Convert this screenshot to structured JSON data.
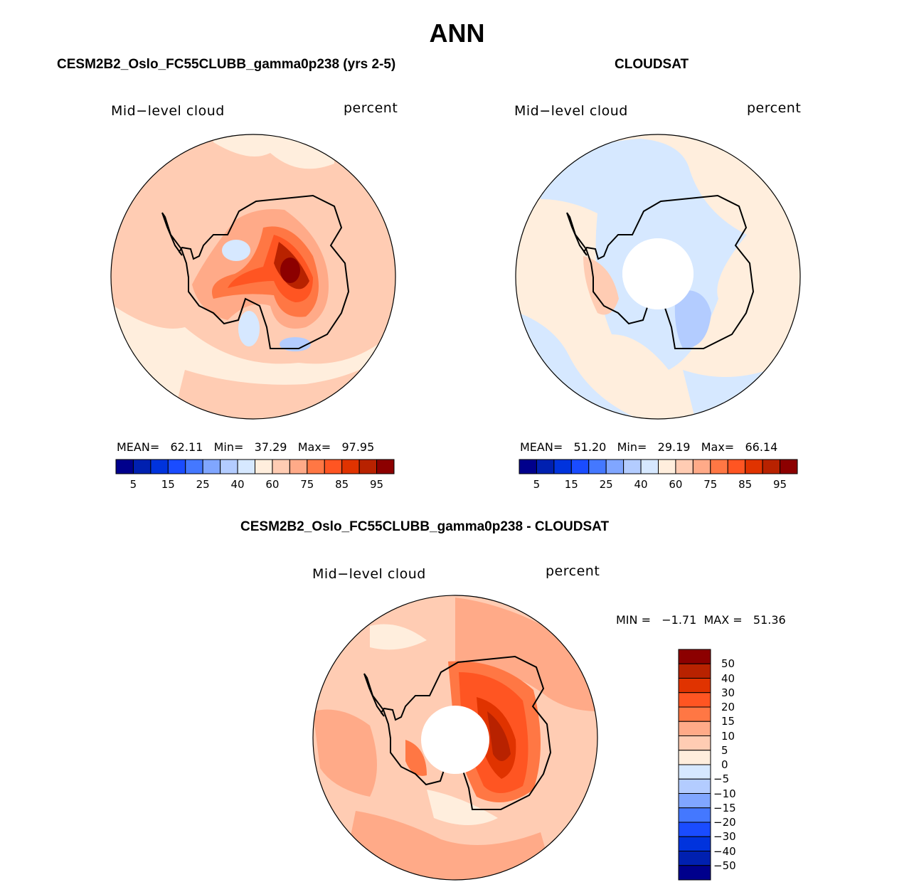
{
  "title": "ANN",
  "panels": {
    "model": {
      "title": "CESM2B2_Oslo_FC55CLUBB_gamma0p238 (yrs 2-5)",
      "variable": "Mid−level cloud",
      "units": "percent",
      "mean_label": "MEAN=",
      "mean": "62.11",
      "min_label": "Min=",
      "min": "37.29",
      "max_label": "Max=",
      "max": "97.95"
    },
    "obs": {
      "title": "CLOUDSAT",
      "variable": "Mid−level cloud",
      "units": "percent",
      "mean_label": "MEAN=",
      "mean": "51.20",
      "min_label": "Min=",
      "min": "29.19",
      "max_label": "Max=",
      "max": "66.14"
    },
    "diff": {
      "title": "CESM2B2_Oslo_FC55CLUBB_gamma0p238 - CLOUDSAT",
      "variable": "Mid−level cloud",
      "units": "percent",
      "min_label": "MIN =",
      "min": "−1.71",
      "max_label": "MAX =",
      "max": "51.36"
    }
  },
  "colorbar_abs": {
    "labels": [
      "5",
      "15",
      "25",
      "40",
      "60",
      "75",
      "85",
      "95"
    ]
  },
  "colorbar_diff": {
    "labels": [
      "50",
      "40",
      "30",
      "20",
      "15",
      "10",
      "5",
      "0",
      "−5",
      "−10",
      "−15",
      "−20",
      "−30",
      "−40",
      "−50"
    ]
  },
  "colors": [
    "#00008c",
    "#0020b0",
    "#0033dd",
    "#1a4cff",
    "#4478ff",
    "#80a6ff",
    "#b3ccff",
    "#d6e8ff",
    "#ffeedd",
    "#ffccb3",
    "#ffaa88",
    "#ff7744",
    "#ff5522",
    "#e03300",
    "#b82200",
    "#8c0000"
  ]
}
